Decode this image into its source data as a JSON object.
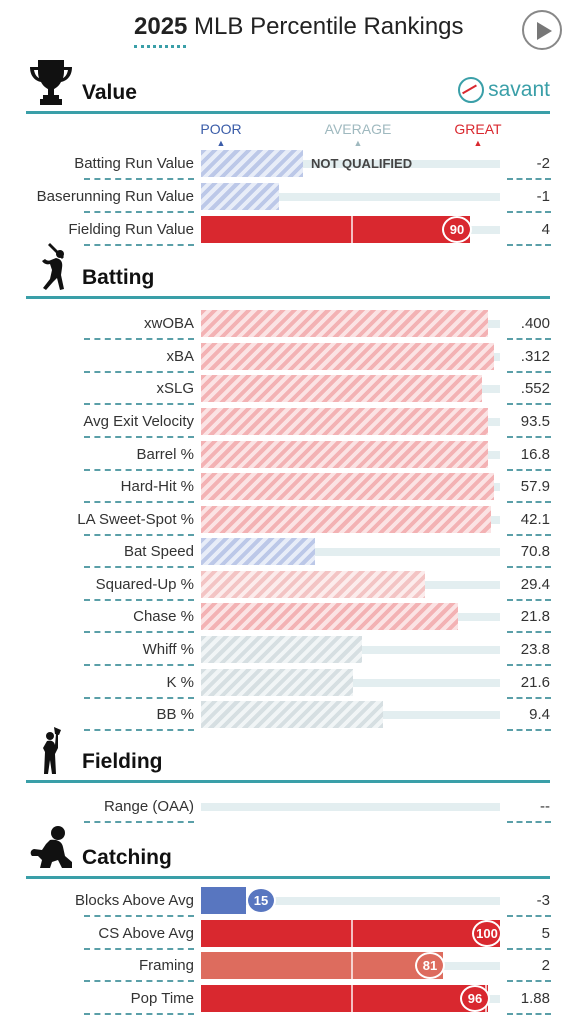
{
  "header": {
    "title_bold": "2025",
    "title_rest": " MLB Percentile Rankings"
  },
  "colors": {
    "accent": "#3a9fa8",
    "great": "#d9282f",
    "poor": "#3a5ca8",
    "average": "#9fb9bf",
    "mid_red": "#dd6c5e",
    "blue_solid": "#5876c0"
  },
  "icons": {
    "play": "play-icon",
    "value": "trophy-icon",
    "batting": "batter-icon",
    "fielding": "fielder-icon",
    "catching": "catcher-icon",
    "logo": "savant-logo-icon"
  },
  "logo": {
    "text": "savant"
  },
  "legend": {
    "poor": "POOR",
    "average": "AVERAGE",
    "great": "GREAT"
  },
  "sections": {
    "value": {
      "title": "Value",
      "rows": [
        {
          "label": "Batting Run Value",
          "value": "-2",
          "percentile": 34,
          "style": "blue-hatched",
          "note": "NOT QUALIFIED"
        },
        {
          "label": "Baserunning Run Value",
          "value": "-1",
          "percentile": 26,
          "style": "blue-hatched"
        },
        {
          "label": "Fielding Run Value",
          "value": "4",
          "percentile": 90,
          "style": "solid-red",
          "badge": "90"
        }
      ]
    },
    "batting": {
      "title": "Batting",
      "rows": [
        {
          "label": "xwOBA",
          "value": ".400",
          "percentile": 96,
          "style": "red-hatched"
        },
        {
          "label": "xBA",
          "value": ".312",
          "percentile": 98,
          "style": "red-hatched"
        },
        {
          "label": "xSLG",
          "value": ".552",
          "percentile": 94,
          "style": "red-hatched"
        },
        {
          "label": "Avg Exit Velocity",
          "value": "93.5",
          "percentile": 96,
          "style": "red-hatched"
        },
        {
          "label": "Barrel %",
          "value": "16.8",
          "percentile": 96,
          "style": "red-hatched"
        },
        {
          "label": "Hard-Hit %",
          "value": "57.9",
          "percentile": 98,
          "style": "red-hatched"
        },
        {
          "label": "LA Sweet-Spot %",
          "value": "42.1",
          "percentile": 97,
          "style": "red-hatched"
        },
        {
          "label": "Bat Speed",
          "value": "70.8",
          "percentile": 38,
          "style": "blue-hatched"
        },
        {
          "label": "Squared-Up %",
          "value": "29.4",
          "percentile": 75,
          "style": "lightred-hatched"
        },
        {
          "label": "Chase %",
          "value": "21.8",
          "percentile": 86,
          "style": "red-hatched"
        },
        {
          "label": "Whiff %",
          "value": "23.8",
          "percentile": 54,
          "style": "gray-hatched"
        },
        {
          "label": "K %",
          "value": "21.6",
          "percentile": 51,
          "style": "gray-hatched"
        },
        {
          "label": "BB %",
          "value": "9.4",
          "percentile": 61,
          "style": "gray-hatched"
        }
      ]
    },
    "fielding": {
      "title": "Fielding",
      "rows": [
        {
          "label": "Range (OAA)",
          "value": "--",
          "percentile": 0,
          "style": "none"
        }
      ]
    },
    "catching": {
      "title": "Catching",
      "rows": [
        {
          "label": "Blocks Above Avg",
          "value": "-3",
          "percentile": 15,
          "style": "solid-blue",
          "badge": "15"
        },
        {
          "label": "CS Above Avg",
          "value": "5",
          "percentile": 100,
          "style": "solid-red",
          "badge": "100"
        },
        {
          "label": "Framing",
          "value": "2",
          "percentile": 81,
          "style": "solid-midred",
          "badge": "81"
        },
        {
          "label": "Pop Time",
          "value": "1.88",
          "percentile": 96,
          "style": "solid-red",
          "badge": "96"
        }
      ]
    }
  }
}
